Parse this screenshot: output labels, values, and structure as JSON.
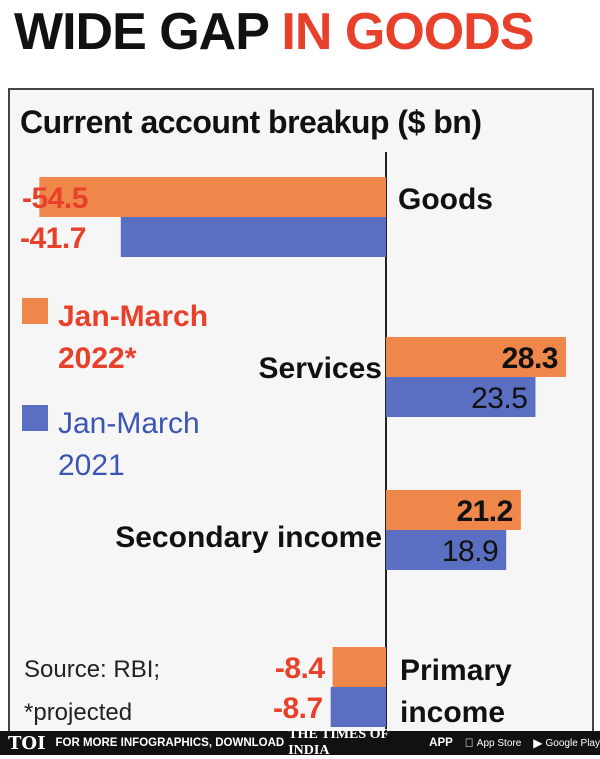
{
  "headline": {
    "part1": "WIDE GAP",
    "part2": "IN GOODS"
  },
  "chart_data": {
    "type": "bar",
    "orientation": "horizontal",
    "title": "Current account breakup ($ bn)",
    "categories": [
      "Goods",
      "Services",
      "Secondary income",
      "Primary income"
    ],
    "series": [
      {
        "name": "Jan-March 2022*",
        "values": [
          -54.5,
          28.3,
          21.2,
          -8.4
        ],
        "color": "#f0874a"
      },
      {
        "name": "Jan-March 2021",
        "values": [
          -41.7,
          23.5,
          18.9,
          -8.7
        ],
        "color": "#5a6fc2"
      }
    ],
    "value_labels": [
      [
        "-54.5",
        "28.3",
        "21.2",
        "-8.4"
      ],
      [
        "-41.7",
        "23.5",
        "18.9",
        "-8.7"
      ]
    ],
    "legend": {
      "placement": "left",
      "items": [
        {
          "line1": "Jan-March",
          "line2": "2022*",
          "color": "#f0874a"
        },
        {
          "line1": "Jan-March",
          "line2": "2021",
          "color": "#5a6fc2"
        }
      ]
    },
    "source": "Source: RBI;",
    "note": "*projected"
  },
  "footer": {
    "logo": "TOI",
    "promo": "FOR MORE INFOGRAPHICS, DOWNLOAD",
    "brand": "THE TIMES OF INDIA",
    "app": "APP",
    "app_store": "App Store",
    "google_play": "Google Play"
  },
  "colors": {
    "accent_red": "#e8412b",
    "label_red": "#e8412b",
    "dark": "#111111"
  }
}
